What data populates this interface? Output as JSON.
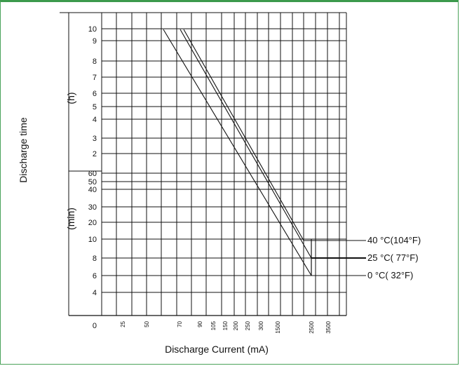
{
  "chart_data": {
    "type": "line",
    "title": "",
    "xlabel": "Discharge Current (mA)",
    "ylabel": "Discharge time",
    "y_unit_hours": "(h)",
    "y_unit_minutes": "(min)",
    "x_tick_labels": [
      "0",
      "25",
      "50",
      "70",
      "90",
      "105",
      "150",
      "200",
      "250",
      "300",
      "1500",
      "2500",
      "3500"
    ],
    "y_hour_ticks": [
      "10",
      "9",
      "8",
      "7",
      "6",
      "5",
      "4",
      "3",
      "2"
    ],
    "y_minute_ticks": [
      "60",
      "50",
      "40",
      "30",
      "20",
      "10",
      "8",
      "6",
      "4"
    ],
    "y_zero_label": "0",
    "grid": true,
    "legend_placement": "right",
    "series": [
      {
        "name": "40 °C(104°F)",
        "points": [
          [
            "70",
            10
          ],
          [
            "2500",
            "9 min"
          ]
        ]
      },
      {
        "name": "25 °C( 77°F)",
        "points": [
          [
            "90",
            10
          ],
          [
            "2500",
            "7.5 min"
          ]
        ]
      },
      {
        "name": "0 °C( 32°F)",
        "points": [
          [
            "70",
            10
          ],
          [
            "2500",
            "6 min"
          ]
        ]
      }
    ]
  }
}
